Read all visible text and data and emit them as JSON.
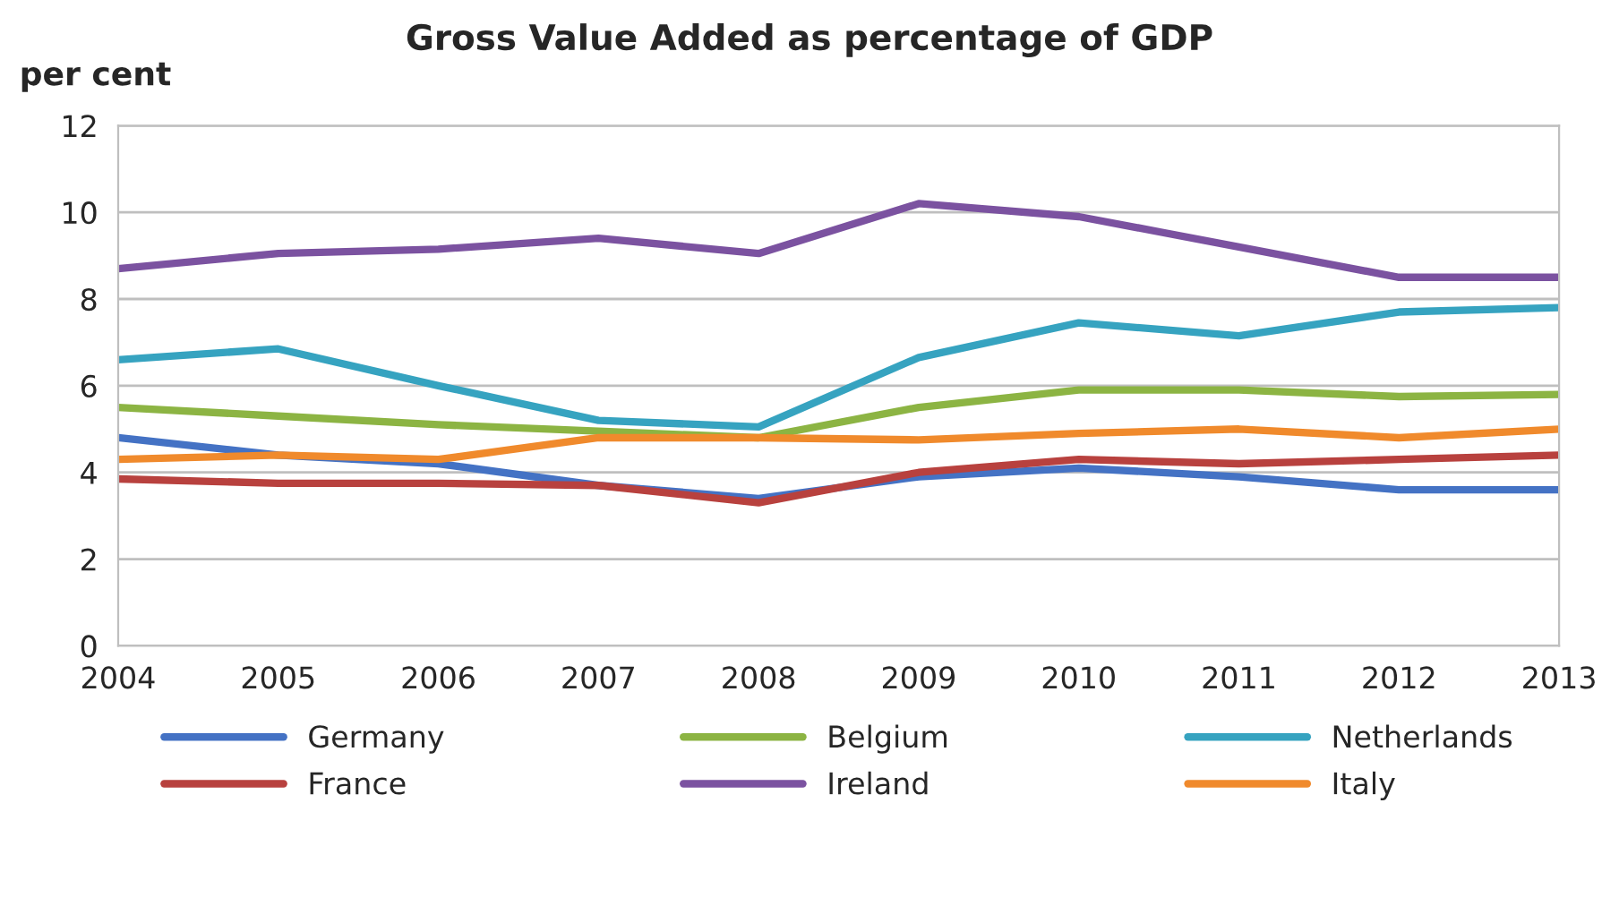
{
  "chart_data": {
    "type": "line",
    "title": "Gross Value Added as percentage of GDP",
    "ylabel": "per cent",
    "categories": [
      "2004",
      "2005",
      "2006",
      "2007",
      "2008",
      "2009",
      "2010",
      "2011",
      "2012",
      "2013"
    ],
    "series": [
      {
        "name": "Germany",
        "color": "#4472c4",
        "values": [
          4.8,
          4.4,
          4.2,
          3.7,
          3.4,
          3.9,
          4.1,
          3.9,
          3.6,
          3.6
        ]
      },
      {
        "name": "France",
        "color": "#b8413e",
        "values": [
          3.85,
          3.75,
          3.75,
          3.7,
          3.3,
          4.0,
          4.3,
          4.2,
          4.3,
          4.4
        ]
      },
      {
        "name": "Belgium",
        "color": "#8cb443",
        "values": [
          5.5,
          5.3,
          5.1,
          4.95,
          4.8,
          5.5,
          5.9,
          5.9,
          5.75,
          5.8
        ]
      },
      {
        "name": "Ireland",
        "color": "#7b52a0",
        "values": [
          8.7,
          9.05,
          9.15,
          9.4,
          9.05,
          10.2,
          9.9,
          9.2,
          8.5,
          8.5
        ]
      },
      {
        "name": "Netherlands",
        "color": "#36a3c0",
        "values": [
          6.6,
          6.85,
          6.0,
          5.2,
          5.05,
          6.65,
          7.45,
          7.15,
          7.7,
          7.8
        ]
      },
      {
        "name": "Italy",
        "color": "#f08a2c",
        "values": [
          4.3,
          4.4,
          4.3,
          4.8,
          4.8,
          4.75,
          4.9,
          5.0,
          4.8,
          5.0
        ]
      }
    ],
    "ylim": [
      0,
      12
    ],
    "yticks": [
      0,
      2,
      4,
      6,
      8,
      10,
      12
    ],
    "grid": "y",
    "legend": "bottom",
    "marker": "none",
    "line_style": "solid"
  }
}
